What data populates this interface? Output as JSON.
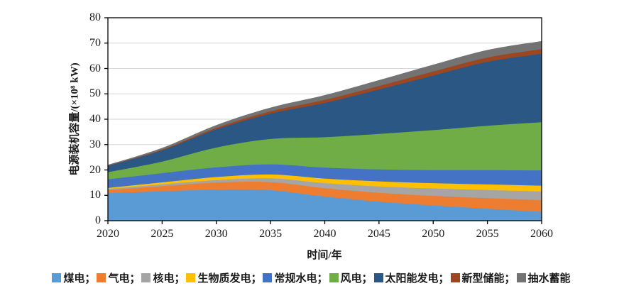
{
  "chart_data": {
    "type": "area",
    "stacked": true,
    "title": "",
    "xlabel": "时间/年",
    "ylabel": "电源装机容量/(×10⁸ kW)",
    "x": [
      2020,
      2025,
      2030,
      2035,
      2040,
      2045,
      2050,
      2055,
      2060
    ],
    "xlim": [
      2020,
      2060
    ],
    "ylim": [
      0,
      80
    ],
    "ytick_step": 10,
    "yticks": [
      0,
      10,
      20,
      30,
      40,
      50,
      60,
      70,
      80
    ],
    "grid": "horizontal-only",
    "grid_color": "#d6d6d6",
    "axis_color": "#000000",
    "legend_position": "bottom",
    "legend_separator": "；",
    "series": [
      {
        "id": "coal",
        "name": "煤电",
        "color": "#5B9BD5",
        "values": [
          10.8,
          11.6,
          12.2,
          12.0,
          9.5,
          7.5,
          6.0,
          4.7,
          3.5
        ]
      },
      {
        "id": "gas",
        "name": "气电",
        "color": "#ED7D31",
        "values": [
          1.2,
          2.0,
          2.8,
          3.2,
          3.3,
          3.5,
          3.8,
          4.2,
          4.6
        ]
      },
      {
        "id": "nuclear",
        "name": "核电",
        "color": "#A5A5A5",
        "values": [
          0.5,
          0.7,
          1.0,
          1.5,
          2.0,
          2.5,
          2.9,
          3.2,
          3.4
        ]
      },
      {
        "id": "biomass",
        "name": "生物质发电",
        "color": "#FFC000",
        "values": [
          0.4,
          0.8,
          1.2,
          1.5,
          1.8,
          2.0,
          2.1,
          2.2,
          2.3
        ]
      },
      {
        "id": "hydro",
        "name": "常规水电",
        "color": "#4472C4",
        "values": [
          3.4,
          3.6,
          3.8,
          4.0,
          4.3,
          4.7,
          5.1,
          5.6,
          6.0
        ]
      },
      {
        "id": "wind",
        "name": "风电",
        "color": "#70AD47",
        "values": [
          2.8,
          4.6,
          7.8,
          10.0,
          12.0,
          14.0,
          15.8,
          17.5,
          19.0
        ]
      },
      {
        "id": "solar",
        "name": "太阳能发电",
        "color": "#2A5784",
        "values": [
          2.5,
          4.4,
          7.2,
          10.0,
          13.5,
          17.5,
          21.5,
          25.2,
          27.0
        ]
      },
      {
        "id": "storage",
        "name": "新型储能",
        "color": "#9C4721",
        "values": [
          0.1,
          0.3,
          0.6,
          0.9,
          1.2,
          1.4,
          1.6,
          1.7,
          1.8
        ]
      },
      {
        "id": "pumped",
        "name": "抽水蓄能",
        "color": "#737373",
        "values": [
          0.3,
          0.7,
          1.1,
          1.5,
          1.9,
          2.3,
          2.7,
          3.0,
          3.2
        ]
      }
    ]
  }
}
